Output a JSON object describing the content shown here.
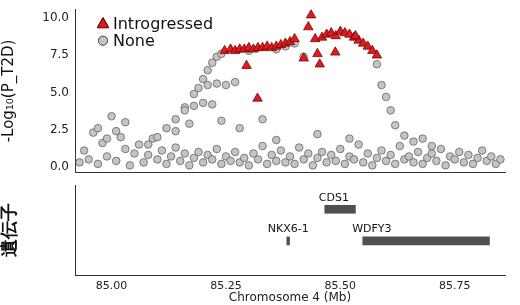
{
  "chart_data": [
    {
      "type": "scatter",
      "ylabel": "-Log₁₀(P_T2D)",
      "xlim": [
        84.92,
        85.86
      ],
      "xticks": [
        {
          "value": 85.0,
          "label": "85.00"
        },
        {
          "value": 85.25,
          "label": "85.25"
        },
        {
          "value": 85.5,
          "label": "85.50"
        },
        {
          "value": 85.75,
          "label": "85.75"
        }
      ],
      "ylim": [
        -0.4,
        10.6
      ],
      "yticks": [
        {
          "value": 0,
          "label": "0.0"
        },
        {
          "value": 2.5,
          "label": "2.5"
        },
        {
          "value": 5,
          "label": "5.0"
        },
        {
          "value": 7.5,
          "label": "7.5"
        },
        {
          "value": 10,
          "label": "10.0"
        }
      ],
      "grid": false,
      "legend": "top left",
      "tick_labels": "y",
      "series": [
        {
          "name": "Introgressed",
          "color": "#e3191c",
          "marker": "triangle",
          "x": [
            85.247,
            85.26,
            85.27,
            85.28,
            85.29,
            85.3,
            85.31,
            85.32,
            85.33,
            85.34,
            85.35,
            85.36,
            85.37,
            85.38,
            85.39,
            85.4,
            85.436,
            85.43,
            85.445,
            85.45,
            85.455,
            85.46,
            85.47,
            85.48,
            85.49,
            85.5,
            85.51,
            85.52,
            85.53,
            85.54,
            85.55,
            85.56,
            85.57,
            85.58,
            85.295,
            85.319,
            85.42,
            85.489,
            85.533
          ],
          "values": [
            7.8,
            7.9,
            7.8,
            7.9,
            7.9,
            8.0,
            7.9,
            8.0,
            8.0,
            8.1,
            8.0,
            8.1,
            8.2,
            8.3,
            8.4,
            8.6,
            10.2,
            9.4,
            8.6,
            7.6,
            6.9,
            8.7,
            8.9,
            9.0,
            8.8,
            9.1,
            9.0,
            8.9,
            8.7,
            8.5,
            8.3,
            8.1,
            7.8,
            7.5,
            6.8,
            4.6,
            7.3,
            7.7,
            8.8
          ]
        },
        {
          "name": "None",
          "color": "#c4c4c4",
          "marker": "circle",
          "x": [
            84.93,
            84.94,
            84.95,
            84.96,
            84.97,
            84.98,
            84.99,
            85.0,
            85.01,
            85.02,
            85.03,
            85.04,
            85.05,
            85.06,
            85.07,
            85.08,
            85.09,
            85.1,
            85.11,
            85.12,
            85.13,
            85.14,
            85.15,
            85.16,
            85.17,
            85.18,
            85.19,
            85.2,
            85.21,
            85.22,
            85.23,
            85.24,
            85.25,
            85.26,
            85.27,
            85.28,
            85.29,
            85.3,
            85.31,
            85.32,
            85.33,
            85.34,
            85.35,
            85.36,
            85.37,
            85.38,
            85.39,
            85.4,
            85.41,
            85.42,
            85.43,
            85.44,
            85.45,
            85.46,
            85.47,
            85.48,
            85.49,
            85.5,
            85.51,
            85.52,
            85.53,
            85.54,
            85.55,
            85.56,
            85.57,
            85.58,
            85.59,
            85.6,
            85.61,
            85.62,
            85.63,
            85.64,
            85.65,
            85.66,
            85.67,
            85.68,
            85.69,
            85.7,
            85.71,
            85.72,
            85.73,
            85.74,
            85.75,
            85.76,
            85.77,
            85.78,
            85.79,
            85.8,
            85.81,
            85.82,
            85.83,
            85.84,
            85.85,
            84.97,
            85.01,
            85.03,
            84.99,
            85.08,
            85.1,
            85.12,
            85.14,
            85.16,
            85.18,
            85.2,
            85.21,
            85.22,
            85.23,
            85.24,
            85.19,
            85.21,
            85.23,
            85.25,
            85.27,
            85.16,
            85.18,
            85.2,
            85.22,
            85.14,
            85.17,
            85.24,
            85.28,
            85.33,
            85.36,
            85.38,
            85.4,
            85.42,
            85.3,
            85.58,
            85.59,
            85.6,
            85.61,
            85.62,
            85.64,
            85.66,
            85.68,
            85.7,
            85.36,
            85.45,
            85.52
          ],
          "values": [
            0.3,
            1.1,
            0.5,
            2.3,
            0.2,
            1.6,
            0.7,
            3.4,
            0.4,
            2.0,
            1.2,
            0.1,
            0.9,
            1.5,
            0.3,
            0.8,
            1.9,
            0.5,
            1.1,
            0.2,
            0.7,
            1.3,
            0.4,
            0.9,
            0.1,
            0.6,
            1.0,
            0.3,
            0.8,
            0.5,
            1.2,
            0.2,
            0.7,
            0.4,
            1.0,
            0.3,
            0.6,
            0.1,
            0.9,
            0.5,
            1.4,
            0.2,
            0.8,
            0.4,
            1.1,
            0.3,
            0.7,
            0.2,
            1.3,
            0.5,
            0.9,
            0.1,
            0.6,
            1.0,
            0.3,
            0.8,
            0.4,
            1.2,
            0.2,
            0.7,
            0.5,
            1.5,
            0.3,
            0.9,
            0.1,
            0.6,
            1.1,
            0.4,
            0.8,
            0.2,
            1.4,
            0.5,
            0.7,
            0.3,
            1.0,
            0.2,
            0.6,
            0.9,
            0.4,
            1.2,
            0.1,
            0.7,
            0.5,
            1.0,
            0.3,
            0.8,
            0.2,
            0.6,
            1.1,
            0.4,
            0.7,
            0.2,
            0.5,
            2.6,
            2.4,
            3.0,
            1.9,
            1.5,
            2.0,
            2.6,
            3.2,
            4.0,
            4.9,
            5.9,
            6.5,
            7.0,
            7.4,
            7.6,
            5.3,
            5.5,
            5.6,
            5.5,
            5.7,
            3.8,
            4.1,
            4.3,
            4.2,
            2.4,
            2.9,
            3.1,
            2.6,
            3.2,
            7.9,
            8.1,
            8.3,
            7.4,
            7.8,
            6.9,
            5.5,
            4.7,
            3.8,
            2.8,
            2.1,
            1.7,
            1.9,
            1.4,
            1.8,
            2.2,
            1.9
          ]
        }
      ]
    },
    {
      "type": "gene_track",
      "ylabel": "遺伝子",
      "xlabel": "Chromosome 4 (Mb)",
      "xlim": [
        84.92,
        85.86
      ],
      "xticks": [
        {
          "value": 85.0,
          "label": "85.00"
        },
        {
          "value": 85.25,
          "label": "85.25"
        },
        {
          "value": 85.5,
          "label": "85.50"
        },
        {
          "value": 85.75,
          "label": "85.75"
        }
      ],
      "grid": false,
      "tick_labels": "x",
      "color": "#505050",
      "genes": [
        {
          "name": "CDS1",
          "start": 85.466,
          "end": 85.533,
          "lane": 1
        },
        {
          "name": "NKX6-1",
          "start": 85.383,
          "end": 85.389,
          "lane": 2
        },
        {
          "name": "WDFY3",
          "start": 85.549,
          "end": 85.826,
          "lane": 2
        }
      ]
    }
  ]
}
